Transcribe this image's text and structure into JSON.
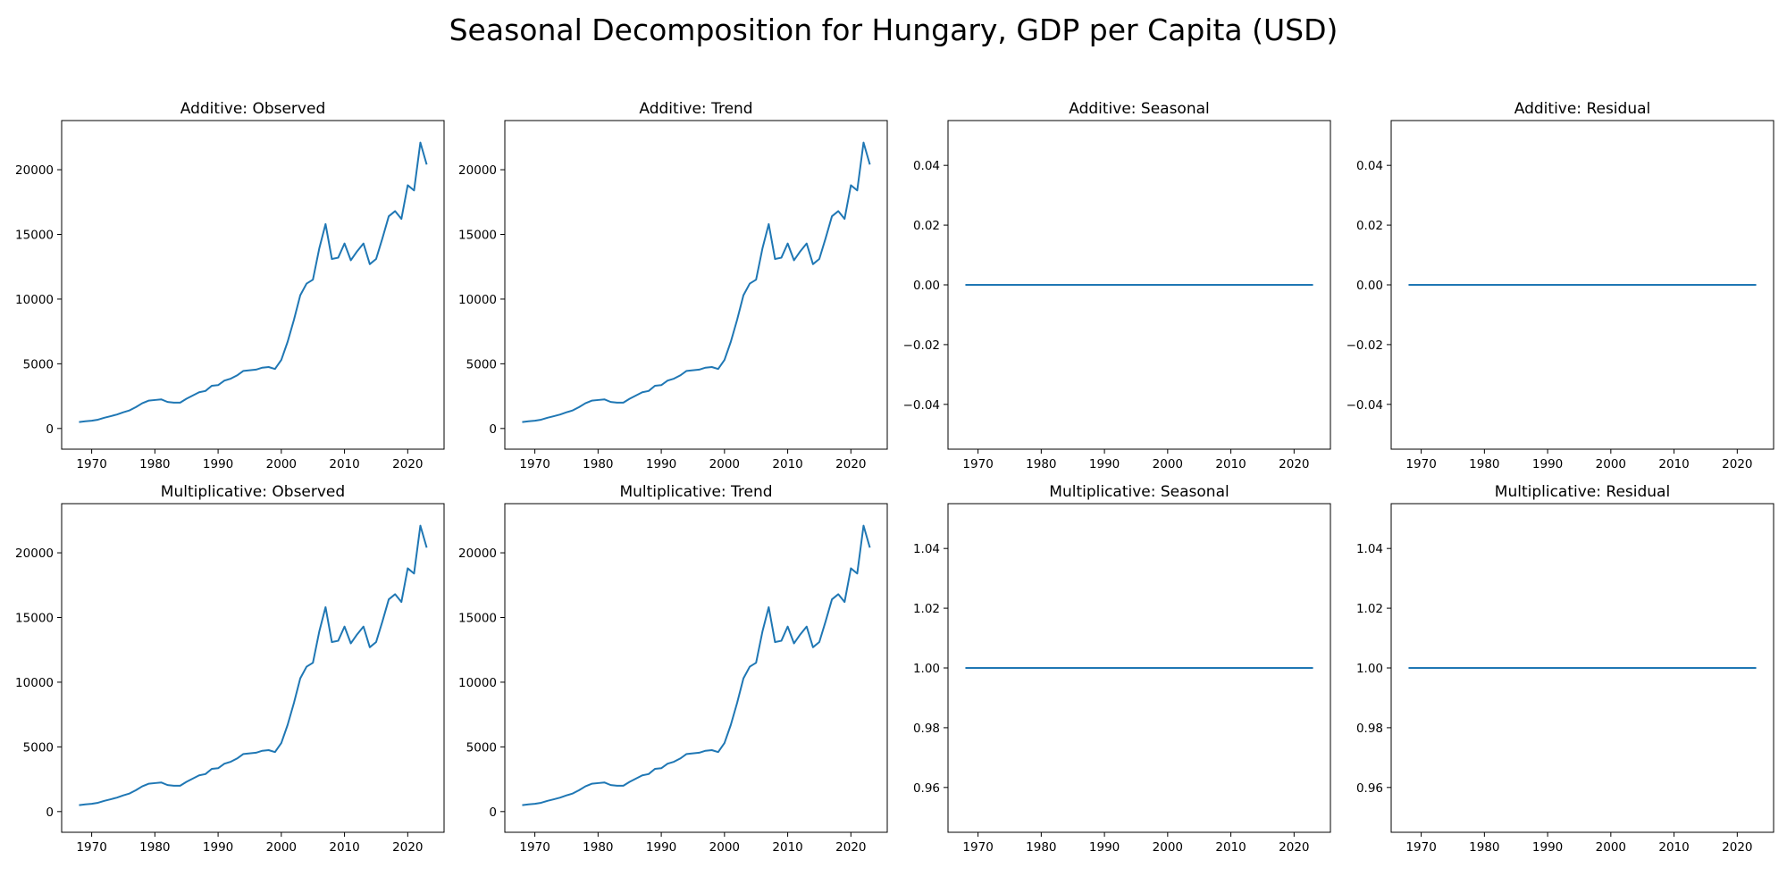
{
  "suptitle": "Seasonal Decomposition for Hungary, GDP per Capita (USD)",
  "line_color": "#1f77b4",
  "chart_data": [
    {
      "type": "line",
      "title": "Additive: Observed",
      "xlabel": "",
      "ylabel": "",
      "xlim": [
        1965.25,
        2025.75
      ],
      "ylim": [
        -1600,
        23800
      ],
      "xticks": [
        1970,
        1980,
        1990,
        2000,
        2010,
        2020
      ],
      "yticks": [
        0,
        5000,
        10000,
        15000,
        20000
      ],
      "yticklabels": [
        "0",
        "5000",
        "10000",
        "15000",
        "20000"
      ],
      "grid": false,
      "series": [
        {
          "ref": "gdp"
        }
      ]
    },
    {
      "type": "line",
      "title": "Additive: Trend",
      "xlabel": "",
      "ylabel": "",
      "xlim": [
        1965.25,
        2025.75
      ],
      "ylim": [
        -1600,
        23800
      ],
      "xticks": [
        1970,
        1980,
        1990,
        2000,
        2010,
        2020
      ],
      "yticks": [
        0,
        5000,
        10000,
        15000,
        20000
      ],
      "yticklabels": [
        "0",
        "5000",
        "10000",
        "15000",
        "20000"
      ],
      "grid": false,
      "series": [
        {
          "ref": "gdp"
        }
      ]
    },
    {
      "type": "line",
      "title": "Additive: Seasonal",
      "xlabel": "",
      "ylabel": "",
      "xlim": [
        1965.25,
        2025.75
      ],
      "ylim": [
        -0.055,
        0.055
      ],
      "xticks": [
        1970,
        1980,
        1990,
        2000,
        2010,
        2020
      ],
      "yticks": [
        0.04,
        0.02,
        0.0,
        -0.02,
        -0.04
      ],
      "yticklabels": [
        "0.04",
        "0.02",
        "0.00",
        "−0.02",
        "−0.04"
      ],
      "grid": false,
      "series": [
        {
          "constant": 0.0
        }
      ]
    },
    {
      "type": "line",
      "title": "Additive: Residual",
      "xlabel": "",
      "ylabel": "",
      "xlim": [
        1965.25,
        2025.75
      ],
      "ylim": [
        -0.055,
        0.055
      ],
      "xticks": [
        1970,
        1980,
        1990,
        2000,
        2010,
        2020
      ],
      "yticks": [
        0.04,
        0.02,
        0.0,
        -0.02,
        -0.04
      ],
      "yticklabels": [
        "0.04",
        "0.02",
        "0.00",
        "−0.02",
        "−0.04"
      ],
      "grid": false,
      "series": [
        {
          "constant": 0.0
        }
      ]
    },
    {
      "type": "line",
      "title": "Multiplicative: Observed",
      "xlabel": "",
      "ylabel": "",
      "xlim": [
        1965.25,
        2025.75
      ],
      "ylim": [
        -1600,
        23800
      ],
      "xticks": [
        1970,
        1980,
        1990,
        2000,
        2010,
        2020
      ],
      "yticks": [
        0,
        5000,
        10000,
        15000,
        20000
      ],
      "yticklabels": [
        "0",
        "5000",
        "10000",
        "15000",
        "20000"
      ],
      "grid": false,
      "series": [
        {
          "ref": "gdp"
        }
      ]
    },
    {
      "type": "line",
      "title": "Multiplicative: Trend",
      "xlabel": "",
      "ylabel": "",
      "xlim": [
        1965.25,
        2025.75
      ],
      "ylim": [
        -1600,
        23800
      ],
      "xticks": [
        1970,
        1980,
        1990,
        2000,
        2010,
        2020
      ],
      "yticks": [
        0,
        5000,
        10000,
        15000,
        20000
      ],
      "yticklabels": [
        "0",
        "5000",
        "10000",
        "15000",
        "20000"
      ],
      "grid": false,
      "series": [
        {
          "ref": "gdp"
        }
      ]
    },
    {
      "type": "line",
      "title": "Multiplicative: Seasonal",
      "xlabel": "",
      "ylabel": "",
      "xlim": [
        1965.25,
        2025.75
      ],
      "ylim": [
        0.945,
        1.055
      ],
      "xticks": [
        1970,
        1980,
        1990,
        2000,
        2010,
        2020
      ],
      "yticks": [
        1.04,
        1.02,
        1.0,
        0.98,
        0.96
      ],
      "yticklabels": [
        "1.04",
        "1.02",
        "1.00",
        "0.98",
        "0.96"
      ],
      "grid": false,
      "series": [
        {
          "constant": 1.0
        }
      ]
    },
    {
      "type": "line",
      "title": "Multiplicative: Residual",
      "xlabel": "",
      "ylabel": "",
      "xlim": [
        1965.25,
        2025.75
      ],
      "ylim": [
        0.945,
        1.055
      ],
      "xticks": [
        1970,
        1980,
        1990,
        2000,
        2010,
        2020
      ],
      "yticks": [
        1.04,
        1.02,
        1.0,
        0.98,
        0.96
      ],
      "yticklabels": [
        "1.04",
        "1.02",
        "1.00",
        "0.98",
        "0.96"
      ],
      "grid": false,
      "series": [
        {
          "constant": 1.0
        }
      ]
    }
  ],
  "gdp_series": {
    "x": [
      1968,
      1969,
      1970,
      1971,
      1972,
      1973,
      1974,
      1975,
      1976,
      1977,
      1978,
      1979,
      1980,
      1981,
      1982,
      1983,
      1984,
      1985,
      1986,
      1987,
      1988,
      1989,
      1990,
      1991,
      1992,
      1993,
      1994,
      1995,
      1996,
      1997,
      1998,
      1999,
      2000,
      2001,
      2002,
      2003,
      2004,
      2005,
      2006,
      2007,
      2008,
      2009,
      2010,
      2011,
      2012,
      2013,
      2014,
      2015,
      2016,
      2017,
      2018,
      2019,
      2020,
      2021,
      2022,
      2023
    ],
    "y": [
      500,
      560,
      600,
      680,
      830,
      950,
      1080,
      1250,
      1400,
      1650,
      1950,
      2150,
      2200,
      2250,
      2050,
      2000,
      2000,
      2300,
      2550,
      2800,
      2900,
      3300,
      3350,
      3700,
      3850,
      4100,
      4450,
      4500,
      4550,
      4700,
      4750,
      4600,
      5300,
      6700,
      8400,
      10300,
      11200,
      11500,
      13900,
      15800,
      13100,
      13200,
      14300,
      13000,
      13700,
      14300,
      12700,
      13100,
      14700,
      16400,
      16800,
      16200,
      18800,
      18400,
      22100,
      20400
    ]
  }
}
